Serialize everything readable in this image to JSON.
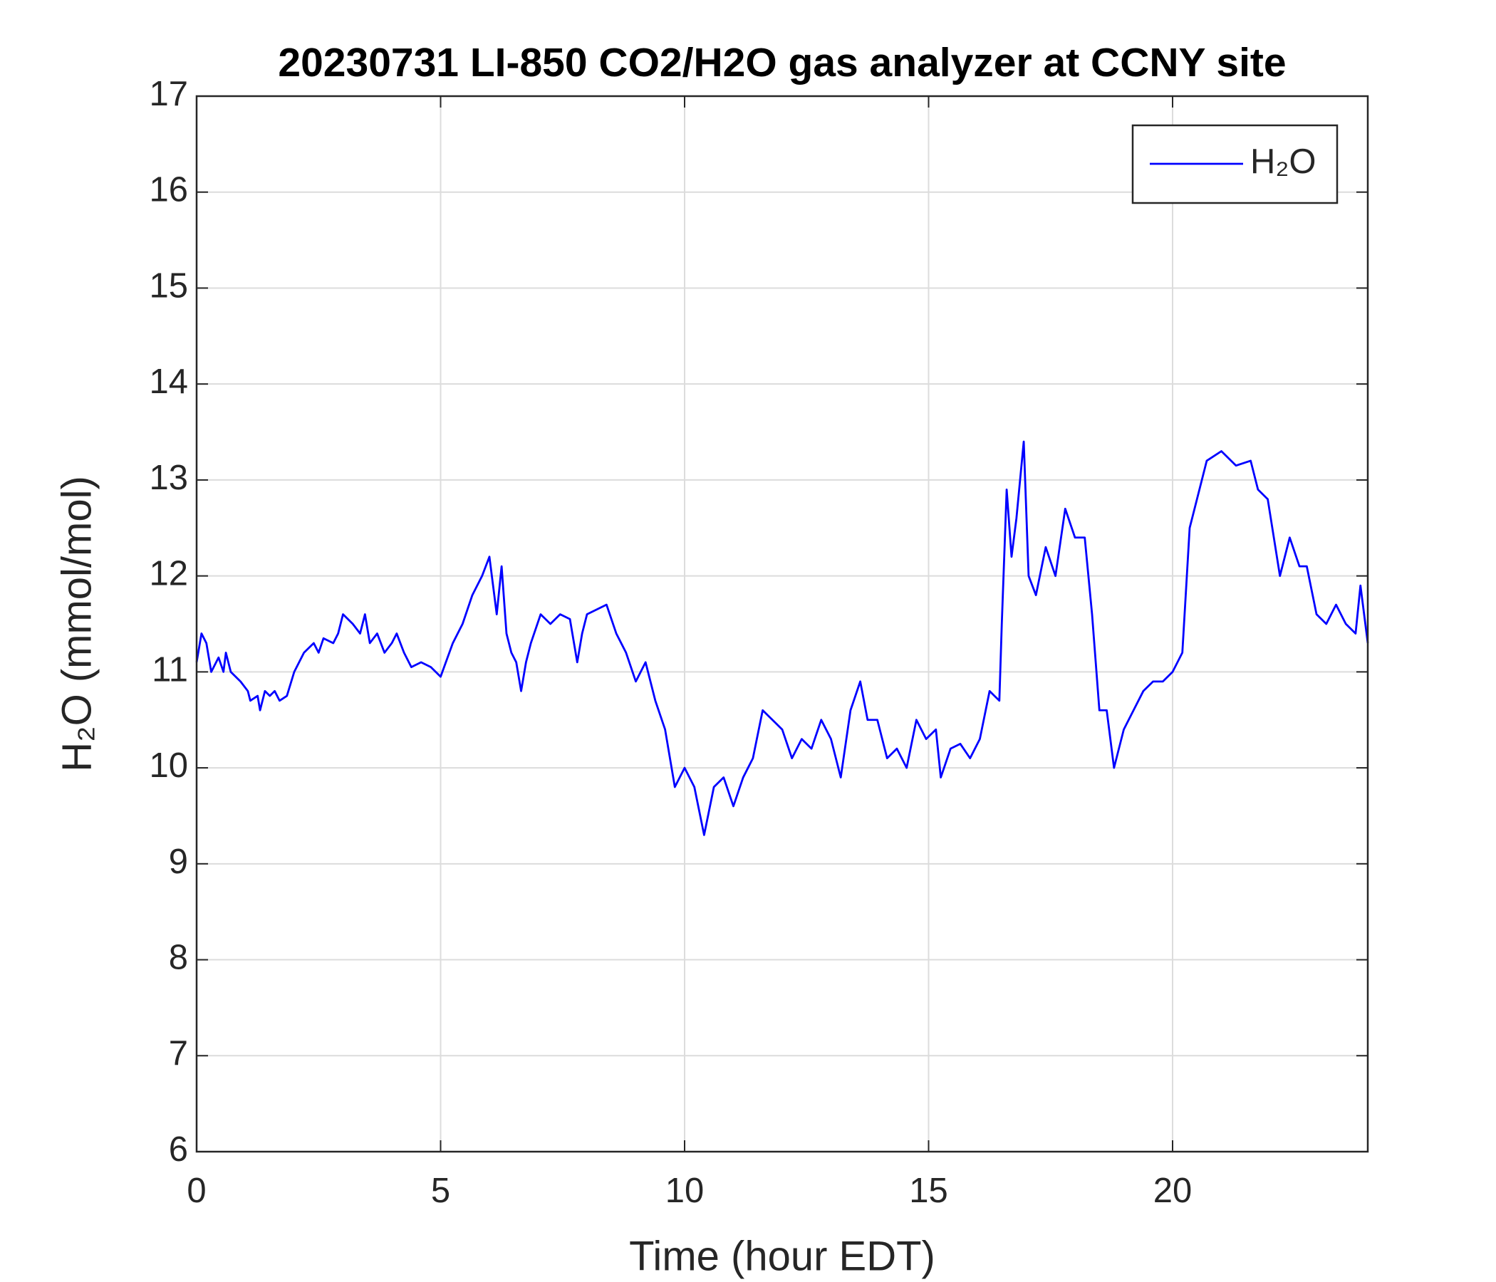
{
  "chart_data": {
    "type": "line",
    "title": "20230731 LI-850 CO2/H2O gas analyzer at CCNY site",
    "xlabel": "Time (hour EDT)",
    "ylabel": "H₂O (mmol/mol)",
    "xlim": [
      0,
      24
    ],
    "ylim": [
      6,
      17
    ],
    "xticks": [
      0,
      5,
      10,
      15,
      20
    ],
    "yticks": [
      6,
      7,
      8,
      9,
      10,
      11,
      12,
      13,
      14,
      15,
      16,
      17
    ],
    "grid": true,
    "legend": "top-right",
    "x": [
      0.0,
      0.1,
      0.2,
      0.3,
      0.45,
      0.55,
      0.6,
      0.7,
      0.9,
      1.05,
      1.1,
      1.25,
      1.3,
      1.4,
      1.5,
      1.6,
      1.7,
      1.85,
      2.0,
      2.2,
      2.4,
      2.5,
      2.6,
      2.8,
      2.9,
      3.0,
      3.2,
      3.35,
      3.45,
      3.55,
      3.7,
      3.85,
      4.0,
      4.1,
      4.25,
      4.4,
      4.6,
      4.8,
      5.0,
      5.25,
      5.45,
      5.65,
      5.85,
      6.0,
      6.15,
      6.25,
      6.35,
      6.45,
      6.55,
      6.65,
      6.75,
      6.85,
      7.05,
      7.25,
      7.45,
      7.65,
      7.8,
      7.9,
      8.0,
      8.2,
      8.4,
      8.6,
      8.8,
      9.0,
      9.2,
      9.4,
      9.6,
      9.8,
      10.0,
      10.2,
      10.4,
      10.6,
      10.8,
      11.0,
      11.2,
      11.4,
      11.6,
      11.8,
      12.0,
      12.2,
      12.4,
      12.6,
      12.8,
      13.0,
      13.2,
      13.4,
      13.6,
      13.75,
      13.95,
      14.15,
      14.35,
      14.55,
      14.75,
      14.95,
      15.15,
      15.25,
      15.45,
      15.65,
      15.85,
      16.05,
      16.25,
      16.45,
      16.5,
      16.6,
      16.7,
      16.8,
      16.95,
      17.05,
      17.2,
      17.4,
      17.6,
      17.8,
      18.0,
      18.2,
      18.35,
      18.5,
      18.65,
      18.8,
      19.0,
      19.2,
      19.4,
      19.6,
      19.8,
      20.0,
      20.2,
      20.35,
      20.5,
      20.7,
      21.0,
      21.3,
      21.6,
      21.75,
      21.95,
      22.2,
      22.4,
      22.6,
      22.75,
      22.95,
      23.15,
      23.35,
      23.55,
      23.75,
      23.85,
      24.0
    ],
    "series": [
      {
        "name": "H₂O",
        "color": "#0000ff",
        "values": [
          11.1,
          11.4,
          11.3,
          11.0,
          11.15,
          11.0,
          11.2,
          11.0,
          10.9,
          10.8,
          10.7,
          10.75,
          10.6,
          10.8,
          10.75,
          10.8,
          10.7,
          10.75,
          11.0,
          11.2,
          11.3,
          11.2,
          11.35,
          11.3,
          11.4,
          11.6,
          11.5,
          11.4,
          11.6,
          11.3,
          11.4,
          11.2,
          11.3,
          11.4,
          11.2,
          11.05,
          11.1,
          11.05,
          10.95,
          11.3,
          11.5,
          11.8,
          12.0,
          12.2,
          11.6,
          12.1,
          11.4,
          11.2,
          11.1,
          10.8,
          11.1,
          11.3,
          11.6,
          11.5,
          11.6,
          11.55,
          11.1,
          11.4,
          11.6,
          11.65,
          11.7,
          11.4,
          11.2,
          10.9,
          11.1,
          10.7,
          10.4,
          9.8,
          10.0,
          9.8,
          9.3,
          9.8,
          9.9,
          9.6,
          9.9,
          10.1,
          10.6,
          10.5,
          10.4,
          10.1,
          10.3,
          10.2,
          10.5,
          10.3,
          9.9,
          10.6,
          10.9,
          10.5,
          10.5,
          10.1,
          10.2,
          10.0,
          10.5,
          10.3,
          10.4,
          9.9,
          10.2,
          10.25,
          10.1,
          10.3,
          10.8,
          10.7,
          11.5,
          12.9,
          12.2,
          12.6,
          13.4,
          12.0,
          11.8,
          12.3,
          12.0,
          12.7,
          12.4,
          12.4,
          11.6,
          10.6,
          10.6,
          10.0,
          10.4,
          10.6,
          10.8,
          10.9,
          10.9,
          11.0,
          11.2,
          12.5,
          12.8,
          13.2,
          13.3,
          13.15,
          13.2,
          12.9,
          12.8,
          12.0,
          12.4,
          12.1,
          12.1,
          11.6,
          11.5,
          11.7,
          11.5,
          11.4,
          11.9,
          11.3
        ]
      }
    ]
  }
}
